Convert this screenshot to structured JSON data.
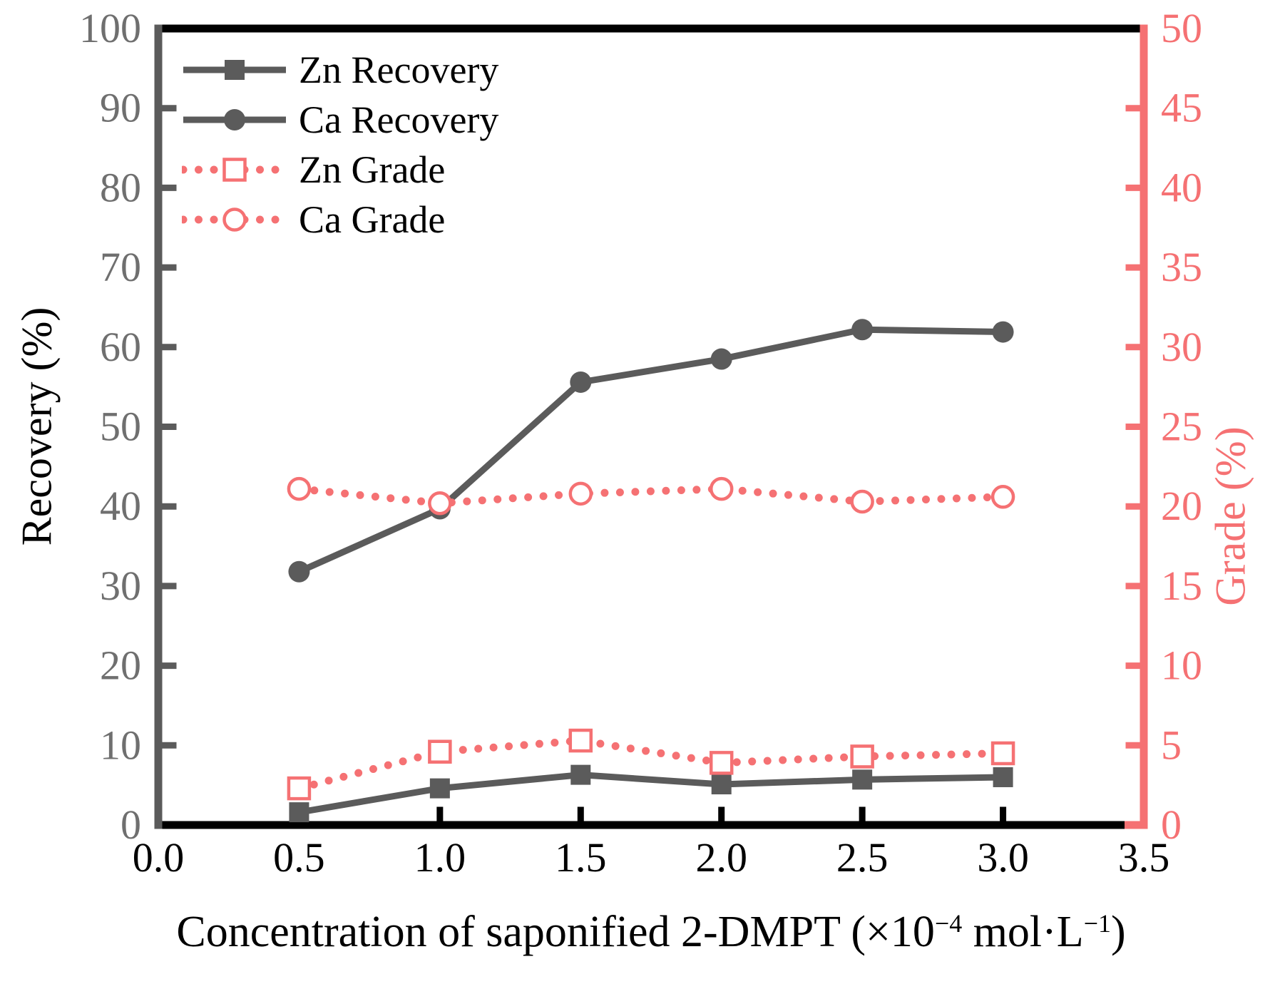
{
  "figure": {
    "background": "#ffffff",
    "xlabel_full": "Concentration of saponified 2-DMPT (×10−4 mol·L−1)",
    "xlabel_parts": {
      "p1": "Concentration of saponified 2-DMPT (×10",
      "sup1": "−4",
      "p2": " mol·L",
      "sup2": "−1",
      "p3": ")"
    }
  },
  "colors": {
    "recovery_series": "#5b5b5b",
    "grade_series": "#f57173",
    "left_tick_labels": "#6f6f6f",
    "black_axis": "#000000",
    "marker_open_fill": "#ffffff"
  },
  "chart_data": {
    "type": "line",
    "title": "",
    "x": [
      0.5,
      1.0,
      1.5,
      2.0,
      2.5,
      3.0
    ],
    "series": [
      {
        "name": "Zn Recovery",
        "axis": "left",
        "color": "#5b5b5b",
        "line": "solid",
        "marker": "square-filled",
        "values": [
          1.6,
          4.6,
          6.3,
          5.1,
          5.7,
          6.0
        ]
      },
      {
        "name": "Ca Recovery",
        "axis": "left",
        "color": "#5b5b5b",
        "line": "solid",
        "marker": "circle-filled",
        "values": [
          31.8,
          39.7,
          55.6,
          58.5,
          62.2,
          61.9
        ]
      },
      {
        "name": "Zn Grade",
        "axis": "right",
        "color": "#f57173",
        "line": "dotted",
        "marker": "square-open",
        "values": [
          2.3,
          4.6,
          5.3,
          3.9,
          4.3,
          4.5
        ]
      },
      {
        "name": "Ca Grade",
        "axis": "right",
        "color": "#f57173",
        "line": "dotted",
        "marker": "circle-open",
        "values": [
          21.1,
          20.2,
          20.8,
          21.1,
          20.3,
          20.6
        ]
      }
    ],
    "axes": {
      "bottom": {
        "label": "Concentration of saponified 2-DMPT (×10−4 mol·L−1)",
        "min": 0.0,
        "max": 3.5,
        "step": 0.5,
        "tick_labels": [
          "0.0",
          "0.5",
          "1.0",
          "1.5",
          "2.0",
          "2.5",
          "3.0",
          "3.5"
        ],
        "spine_color": "#000000",
        "tick_label_color": "#000000",
        "title_color": "#000000"
      },
      "left": {
        "label": "Recovery (%)",
        "min": 0,
        "max": 100,
        "step": 10,
        "tick_labels": [
          "0",
          "10",
          "20",
          "30",
          "40",
          "50",
          "60",
          "70",
          "80",
          "90",
          "100"
        ],
        "spine_color": "#5b5b5b",
        "tick_label_color": "#6f6f6f",
        "title_color": "#000000"
      },
      "right": {
        "label": "Grade (%)",
        "min": 0,
        "max": 50,
        "step": 5,
        "tick_labels": [
          "0",
          "5",
          "10",
          "15",
          "20",
          "25",
          "30",
          "35",
          "40",
          "45",
          "50"
        ],
        "spine_color": "#f57173",
        "tick_label_color": "#f57173",
        "title_color": "#f57173"
      }
    },
    "legend": {
      "position": "top-left",
      "entries": [
        "Zn Recovery",
        "Ca Recovery",
        "Zn Grade",
        "Ca Grade"
      ]
    },
    "grid": false
  }
}
